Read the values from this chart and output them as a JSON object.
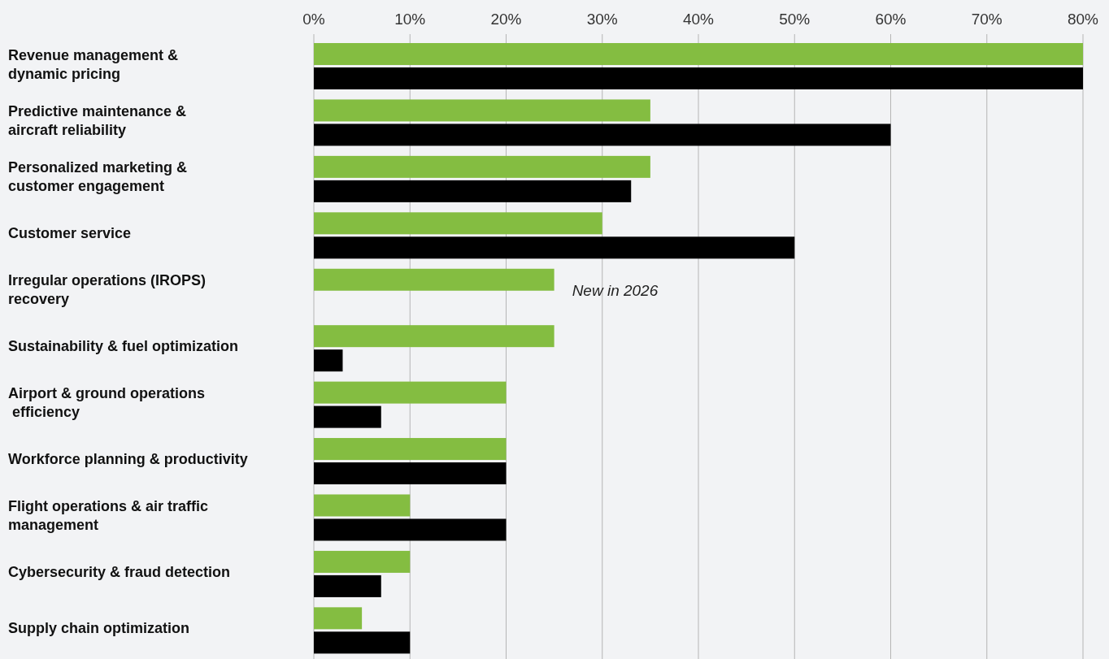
{
  "chart_data": {
    "type": "bar",
    "orientation": "horizontal",
    "categories": [
      "Revenue management &\ndynamic pricing",
      "Predictive maintenance &\naircraft reliability",
      "Personalized marketing &\ncustomer engagement",
      "Customer service",
      "Irregular operations (IROPS)\nrecovery",
      "Sustainability & fuel optimization",
      "Airport & ground operations\n efficiency",
      "Workforce planning & productivity",
      "Flight operations & air traffic\nmanagement",
      "Cybersecurity & fraud detection",
      "Supply chain optimization"
    ],
    "series": [
      {
        "color": "#84bd41",
        "values": [
          80,
          35,
          35,
          30,
          25,
          25,
          20,
          20,
          10,
          10,
          5
        ]
      },
      {
        "color": "#000000",
        "values": [
          80,
          60,
          33,
          50,
          null,
          3,
          7,
          20,
          20,
          7,
          10
        ]
      }
    ],
    "xlim": [
      0,
      80
    ],
    "xticks": [
      {
        "value": 0,
        "label": "0%"
      },
      {
        "value": 10,
        "label": "10%"
      },
      {
        "value": 20,
        "label": "20%"
      },
      {
        "value": 30,
        "label": "30%"
      },
      {
        "value": 40,
        "label": "40%"
      },
      {
        "value": 50,
        "label": "50%"
      },
      {
        "value": 60,
        "label": "60%"
      },
      {
        "value": 70,
        "label": "70%"
      },
      {
        "value": 80,
        "label": "80%"
      }
    ],
    "grid": "x",
    "annotations": [
      "New in 2026"
    ]
  }
}
